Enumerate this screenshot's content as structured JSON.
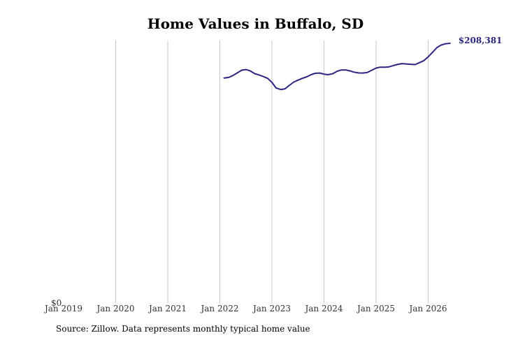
{
  "chart_data": {
    "type": "line",
    "title": "Home Values in Buffalo, SD",
    "source": "Source: Zillow. Data represents monthly typical home value",
    "y_zero_label": "$0",
    "end_label": "$208,381",
    "line_color": "#2a2580",
    "grid": "vertical",
    "xlim": [
      2019.0,
      2026.7
    ],
    "ylim": [
      0,
      210000
    ],
    "x_ticks": [
      {
        "value": 2019,
        "label": "Jan 2019"
      },
      {
        "value": 2020,
        "label": "Jan 2020"
      },
      {
        "value": 2021,
        "label": "Jan 2021"
      },
      {
        "value": 2022,
        "label": "Jan 2022"
      },
      {
        "value": 2023,
        "label": "Jan 2023"
      },
      {
        "value": 2024,
        "label": "Jan 2024"
      },
      {
        "value": 2025,
        "label": "Jan 2025"
      },
      {
        "value": 2026,
        "label": "Jan 2026"
      }
    ],
    "series": [
      {
        "x": [
          2022.08,
          2022.17,
          2022.25,
          2022.33,
          2022.42,
          2022.5,
          2022.58,
          2022.67,
          2022.75,
          2022.83,
          2022.92,
          2023.0,
          2023.08,
          2023.17,
          2023.25,
          2023.33,
          2023.42,
          2023.5,
          2023.58,
          2023.67,
          2023.75,
          2023.83,
          2023.92,
          2024.0,
          2024.08,
          2024.17,
          2024.25,
          2024.33,
          2024.42,
          2024.5,
          2024.58,
          2024.67,
          2024.75,
          2024.83,
          2024.92,
          2025.0,
          2025.08,
          2025.17,
          2025.25,
          2025.33,
          2025.42,
          2025.5,
          2025.58,
          2025.67,
          2025.75,
          2025.83,
          2025.92,
          2026.0,
          2026.08,
          2026.17,
          2026.25,
          2026.33,
          2026.42
        ],
        "values": [
          180500,
          181000,
          182500,
          184500,
          186800,
          187300,
          186300,
          184000,
          183000,
          181800,
          180200,
          177000,
          172500,
          171300,
          171800,
          174500,
          177300,
          178800,
          180200,
          181500,
          183200,
          184300,
          184500,
          183600,
          183200,
          184000,
          185900,
          186900,
          187000,
          186200,
          185200,
          184600,
          184500,
          184900,
          186800,
          188500,
          189200,
          189200,
          189500,
          190500,
          191500,
          192100,
          191800,
          191500,
          191300,
          192800,
          194500,
          197500,
          201000,
          205000,
          207000,
          208000,
          208381
        ]
      }
    ]
  }
}
